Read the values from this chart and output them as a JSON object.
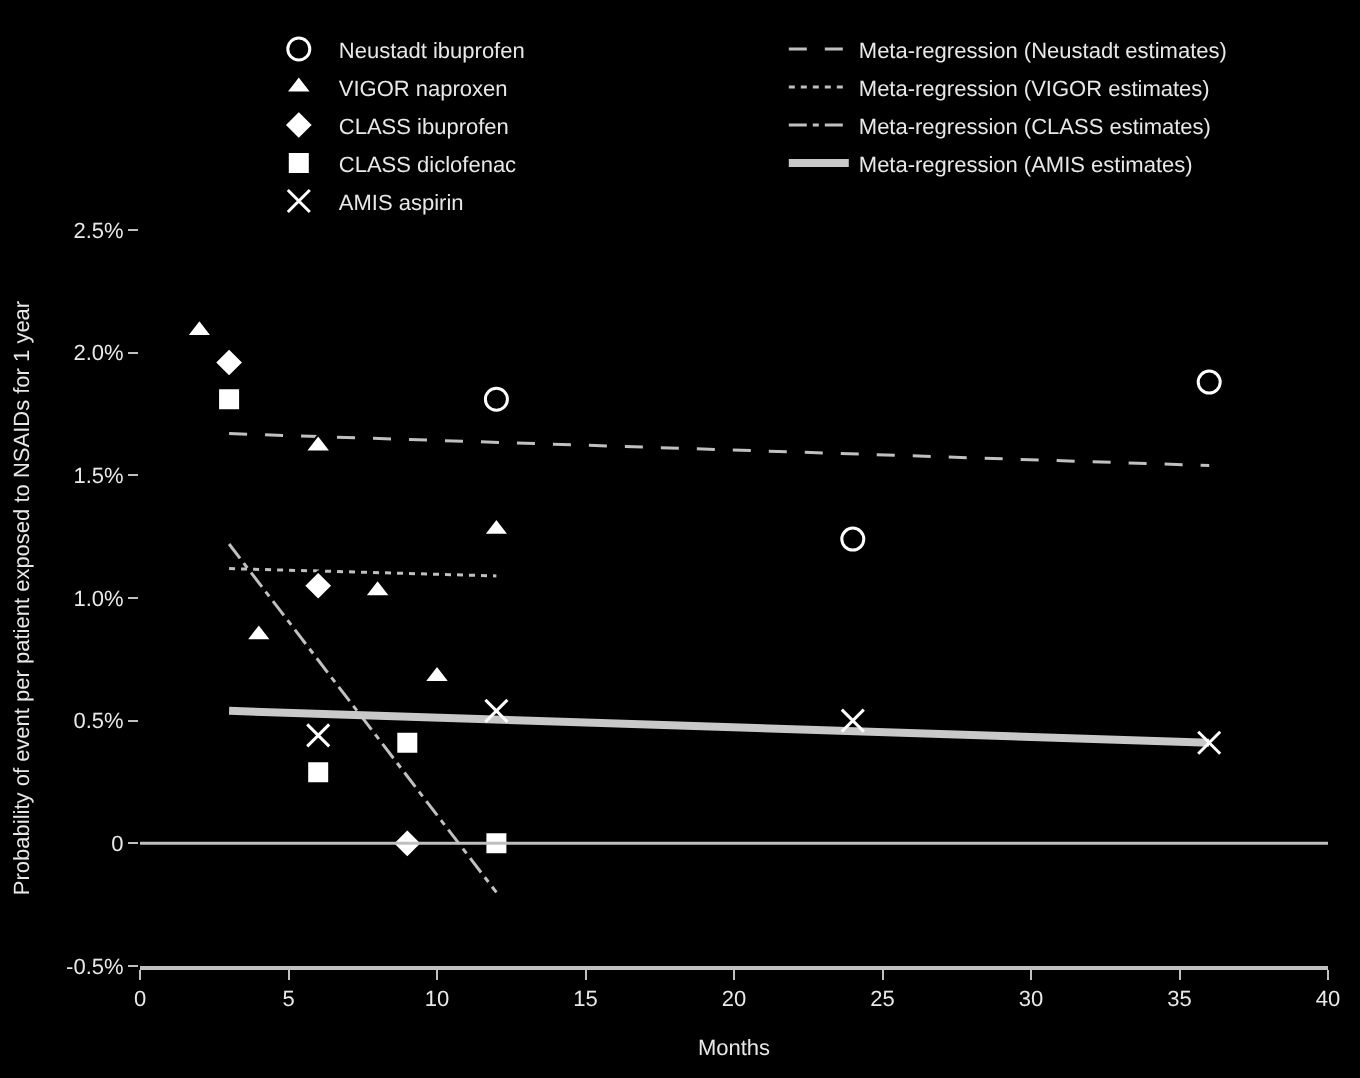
{
  "chart_data": {
    "type": "scatter",
    "xlabel": "Months",
    "ylabel": "Probability of event per patient exposed to NSAIDs for 1 year",
    "xlim": [
      0,
      40
    ],
    "xticks": [
      0,
      5,
      10,
      15,
      20,
      25,
      30,
      35,
      40
    ],
    "ylim": [
      -0.5,
      2.5
    ],
    "yticks": [
      {
        "value": -0.5,
        "label": "-0.5%"
      },
      {
        "value": 0,
        "label": "0"
      },
      {
        "value": 0.5,
        "label": "0.5%"
      },
      {
        "value": 1.0,
        "label": "1.0%"
      },
      {
        "value": 1.5,
        "label": "1.5%"
      },
      {
        "value": 2.0,
        "label": "2.0%"
      },
      {
        "value": 2.5,
        "label": "2.5%"
      }
    ],
    "grid": false,
    "legend": "top",
    "ref_lines": [
      {
        "axis": "y",
        "value": 0,
        "color": "#c0c0c0"
      }
    ],
    "series": [
      {
        "name": "Neustadt ibuprofen",
        "marker": "circle",
        "color": "#ffffff",
        "x": [
          12,
          24,
          36
        ],
        "values": [
          1.81,
          1.24,
          1.88
        ]
      },
      {
        "name": "Meta-regression (Neustadt estimates)",
        "type": "line",
        "line_style": "dashed",
        "marker": "none",
        "color": "#c0c0c0",
        "x": [
          3,
          36
        ],
        "values": [
          1.67,
          1.54
        ]
      },
      {
        "name": "VIGOR naproxen",
        "marker": "triangle",
        "color": "#ffffff",
        "x": [
          2,
          6,
          4,
          8,
          10,
          12
        ],
        "values": [
          2.09,
          1.62,
          0.85,
          1.03,
          0.68,
          1.28
        ]
      },
      {
        "name": "Meta-regression (VIGOR estimates)",
        "type": "line",
        "line_style": "dotted",
        "marker": "none",
        "color": "#c0c0c0",
        "x": [
          3,
          12
        ],
        "values": [
          1.12,
          1.09
        ]
      },
      {
        "name": "CLASS ibuprofen",
        "marker": "diamond",
        "color": "#ffffff",
        "x": [
          3,
          6,
          9
        ],
        "values": [
          1.96,
          1.05,
          0
        ]
      },
      {
        "name": "Meta-regression (CLASS estimates)",
        "type": "line",
        "line_style": "dashdot",
        "marker": "none",
        "color": "#c0c0c0",
        "x": [
          3,
          12
        ],
        "values": [
          1.22,
          -0.2
        ]
      },
      {
        "name": "CLASS diclofenac",
        "marker": "square",
        "color": "#ffffff",
        "x": [
          3,
          6,
          9,
          12
        ],
        "values": [
          1.81,
          0.29,
          0.41,
          0
        ]
      },
      {
        "name": "Meta-regression (AMIS estimates)",
        "type": "line",
        "line_style": "solid",
        "marker": "none",
        "color": "#c8c8c8",
        "x": [
          3,
          36
        ],
        "values": [
          0.54,
          0.41
        ]
      },
      {
        "name": "AMIS aspirin",
        "marker": "cross",
        "color": "#ffffff",
        "x": [
          6,
          12,
          24,
          36
        ],
        "values": [
          0.44,
          0.54,
          0.5,
          0.41
        ]
      }
    ]
  }
}
